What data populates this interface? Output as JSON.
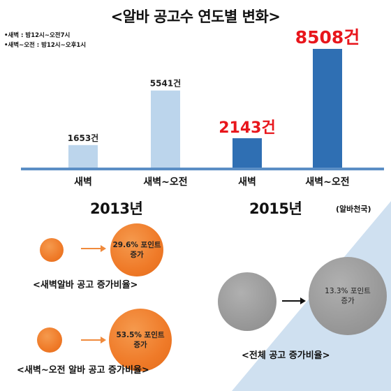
{
  "title": "<알바 공고수 연도별 변화>",
  "notes": [
    "•새벽 : 밤12시~오전7시",
    "•새벽~오전 : 밤12시~오후1시"
  ],
  "source": "(알바천국)",
  "chart_data": {
    "type": "bar",
    "categories": [
      "새벽",
      "새벽~오전",
      "새벽",
      "새벽~오전"
    ],
    "groups": [
      "2013년",
      "2015년"
    ],
    "values": [
      1653,
      5541,
      2143,
      8508
    ],
    "value_labels": [
      "1653건",
      "5541건",
      "2143건",
      "8508건"
    ],
    "unit": "건",
    "bar_colors": [
      "#bcd5ec",
      "#bcd5ec",
      "#2f6fb3",
      "#2f6fb3"
    ],
    "label_colors": [
      "#222222",
      "#222222",
      "#e8161c",
      "#e8161c"
    ],
    "axis_color": "#5b8ec5",
    "ylim": [
      0,
      8508
    ],
    "grid": false
  },
  "increase_rows": [
    {
      "text": "29.6% 포인트\n증가",
      "caption": "<새벽알바 공고 증가비율>"
    },
    {
      "text": "53.5% 포인트\n증가",
      "caption": "<새벽~오전 알바 공고 증가비율>"
    }
  ],
  "total": {
    "text": "13.3% 포인트\n증가",
    "caption": "<전체 공고 증가비율>"
  },
  "colors": {
    "orange": "#ef7a28",
    "arrow_orange": "#f08a3c",
    "grey": "#999999",
    "diagonal": "#cfe0f0"
  }
}
